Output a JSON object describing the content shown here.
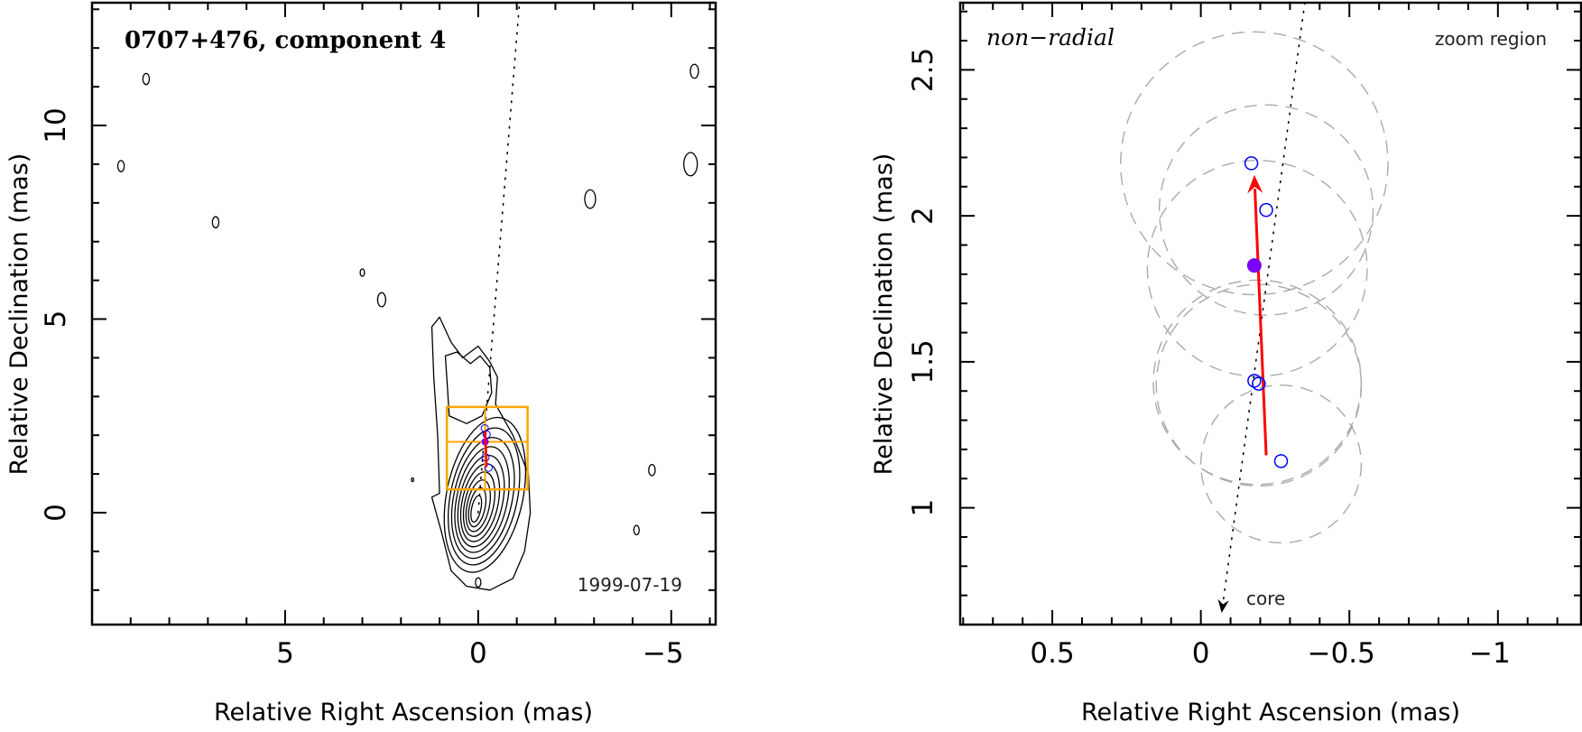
{
  "chart_data": [
    {
      "type": "contour",
      "title": "0707+476, component 4",
      "date_label": "1999-07-19",
      "xlabel": "Relative Right Ascension (mas)",
      "ylabel": "Relative Declination (mas)",
      "xlim": [
        10.0,
        -6.15
      ],
      "ylim": [
        -2.89,
        13.17
      ],
      "xticks": {
        "major": [
          5,
          0,
          -5
        ],
        "labels": [
          "5",
          "0",
          "−5"
        ],
        "minor_step": 1
      },
      "yticks": {
        "major": [
          0,
          5,
          10
        ],
        "labels": [
          "0",
          "5",
          "10"
        ],
        "minor_step": 1
      },
      "core_contours": {
        "count": 11,
        "center_outer": [
          -0.2,
          0.5
        ],
        "center_inner": [
          0.05,
          0.1
        ],
        "rx_outer": 1.15,
        "rx_inner": 0.12,
        "ry_outer": 2.35,
        "ry_inner": 0.35,
        "tilt_deg": -12
      },
      "extended_contours": [
        [
          [
            1.0,
            0.5
          ],
          [
            1.05,
            2.0
          ],
          [
            1.15,
            3.5
          ],
          [
            1.2,
            4.8
          ],
          [
            1.0,
            5.05
          ],
          [
            0.7,
            4.4
          ],
          [
            0.4,
            4.0
          ],
          [
            0.0,
            4.3
          ],
          [
            -0.3,
            3.9
          ],
          [
            -0.5,
            3.5
          ],
          [
            -0.45,
            2.8
          ],
          [
            -0.9,
            2.0
          ],
          [
            -1.3,
            1.0
          ],
          [
            -1.35,
            0
          ],
          [
            -1.2,
            -1.0
          ],
          [
            -0.9,
            -1.7
          ],
          [
            -0.3,
            -2.0
          ],
          [
            0.3,
            -1.9
          ],
          [
            0.7,
            -1.5
          ],
          [
            0.95,
            -0.5
          ],
          [
            1.2,
            0.4
          ],
          [
            1.0,
            0.5
          ]
        ],
        [
          [
            0.75,
            2.5
          ],
          [
            0.8,
            3.3
          ],
          [
            0.85,
            4.05
          ],
          [
            0.55,
            4.15
          ],
          [
            0.2,
            3.85
          ],
          [
            -0.05,
            4.05
          ],
          [
            -0.3,
            3.75
          ],
          [
            -0.35,
            3.1
          ],
          [
            -0.1,
            2.5
          ],
          [
            0.3,
            2.3
          ],
          [
            0.75,
            2.5
          ]
        ]
      ],
      "islands": [
        {
          "x": 8.6,
          "y": 11.2,
          "r": 0.12
        },
        {
          "x": 9.25,
          "y": 8.95,
          "r": 0.12
        },
        {
          "x": 6.8,
          "y": 7.5,
          "r": 0.12
        },
        {
          "x": 3.0,
          "y": 6.2,
          "r": 0.08
        },
        {
          "x": 2.5,
          "y": 5.5,
          "r": 0.15
        },
        {
          "x": -2.9,
          "y": 8.1,
          "r": 0.2
        },
        {
          "x": -5.5,
          "y": 9.0,
          "r": 0.25
        },
        {
          "x": -5.6,
          "y": 11.4,
          "r": 0.15
        },
        {
          "x": -4.5,
          "y": 1.1,
          "r": 0.12
        },
        {
          "x": -4.1,
          "y": -0.45,
          "r": 0.1
        },
        {
          "x": 1.7,
          "y": 0.85,
          "r": 0.04
        },
        {
          "x": 0.0,
          "y": -1.8,
          "r": 0.1
        }
      ],
      "jet_axis": [
        [
          0.0,
          0.0
        ],
        [
          -1.07,
          13.17
        ]
      ],
      "zoom_region": {
        "x": [
          0.81,
          -1.28
        ],
        "y": [
          0.6,
          2.73
        ],
        "crosshair": [
          -0.18,
          1.83
        ],
        "color": "#ffa500"
      },
      "component_points": [
        [
          -0.17,
          2.18
        ],
        [
          -0.22,
          2.02
        ],
        [
          -0.19,
          1.43
        ],
        [
          -0.27,
          1.16
        ]
      ],
      "mean_position": [
        -0.18,
        1.83
      ],
      "velocity_arrow": [
        [
          -0.22,
          1.18
        ],
        [
          -0.18,
          2.14
        ]
      ]
    },
    {
      "type": "scatter",
      "label_left": "non−radial",
      "label_right": "zoom region",
      "core_label": "core",
      "xlabel": "Relative Right Ascension (mas)",
      "ylabel": "Relative Declination (mas)",
      "xlim": [
        0.81,
        -1.28
      ],
      "ylim": [
        0.6,
        2.73
      ],
      "xticks": {
        "major": [
          0.5,
          0,
          -0.5,
          -1
        ],
        "labels": [
          "0.5",
          "0",
          "−0.5",
          "−1"
        ],
        "minor_step": 0.1
      },
      "yticks": {
        "major": [
          1,
          1.5,
          2,
          2.5
        ],
        "labels": [
          "1",
          "1.5",
          "2",
          "2.5"
        ],
        "minor_step": 0.1
      },
      "points": [
        {
          "x": -0.17,
          "y": 2.18
        },
        {
          "x": -0.22,
          "y": 2.02
        },
        {
          "x": -0.18,
          "y": 1.435
        },
        {
          "x": -0.195,
          "y": 1.425
        },
        {
          "x": -0.27,
          "y": 1.16
        }
      ],
      "mean_position": {
        "x": -0.18,
        "y": 1.83
      },
      "fit_circles": [
        {
          "x": -0.18,
          "y": 2.18,
          "r": 0.45
        },
        {
          "x": -0.22,
          "y": 2.02,
          "r": 0.36
        },
        {
          "x": -0.19,
          "y": 1.82,
          "r": 0.37
        },
        {
          "x": -0.19,
          "y": 1.43,
          "r": 0.35
        },
        {
          "x": -0.195,
          "y": 1.42,
          "r": 0.345
        },
        {
          "x": -0.27,
          "y": 1.15,
          "r": 0.27
        }
      ],
      "velocity_arrow": {
        "from": [
          -0.22,
          1.18
        ],
        "to": [
          -0.18,
          2.14
        ]
      },
      "jet_axis": {
        "from": [
          -0.35,
          2.73
        ],
        "to": [
          -0.07,
          0.64
        ]
      },
      "colors": {
        "points": "#0000ff",
        "mean": "#7a00ff",
        "arrow": "#ff0000",
        "circles": "#aaaaaa"
      }
    }
  ]
}
